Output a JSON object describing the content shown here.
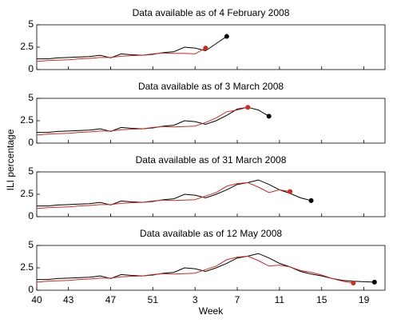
{
  "xlabel": "Week",
  "ylabel": "ILI percentage",
  "chart_data": [
    {
      "type": "line",
      "title": "Data available as of 4 February 2008",
      "x": [
        40,
        41,
        42,
        43,
        44,
        45,
        46,
        47,
        48,
        49,
        50,
        51,
        52,
        53,
        54,
        55,
        56,
        57,
        58
      ],
      "series": [
        {
          "color": "#000000",
          "values": [
            1.2,
            1.2,
            1.3,
            1.35,
            1.4,
            1.45,
            1.6,
            1.3,
            1.75,
            1.65,
            1.6,
            1.7,
            1.9,
            2.0,
            2.5,
            2.4,
            2.1,
            2.9,
            3.7
          ]
        },
        {
          "color": "#d7261e",
          "values": [
            0.9,
            1.0,
            1.05,
            1.1,
            1.2,
            1.25,
            1.35,
            1.35,
            1.5,
            1.55,
            1.6,
            1.75,
            1.85,
            1.8,
            1.8,
            1.75,
            2.4,
            null,
            null
          ]
        }
      ],
      "xlim": [
        40,
        73
      ],
      "xticks": [
        40,
        43,
        47,
        51,
        {
          "value": 55,
          "label": "3"
        },
        {
          "value": 59,
          "label": "7"
        },
        {
          "value": 63,
          "label": "11"
        },
        {
          "value": 67,
          "label": "15"
        },
        {
          "value": 71,
          "label": "19"
        }
      ],
      "ylim": [
        0,
        5
      ],
      "yticks": [
        0,
        2.5,
        5
      ]
    },
    {
      "type": "line",
      "title": "Data available as of 3 March 2008",
      "x": [
        40,
        41,
        42,
        43,
        44,
        45,
        46,
        47,
        48,
        49,
        50,
        51,
        52,
        53,
        54,
        55,
        56,
        57,
        58,
        59,
        60,
        61,
        62
      ],
      "series": [
        {
          "color": "#000000",
          "values": [
            1.2,
            1.2,
            1.3,
            1.35,
            1.4,
            1.45,
            1.6,
            1.3,
            1.75,
            1.65,
            1.6,
            1.7,
            1.9,
            2.0,
            2.5,
            2.4,
            2.1,
            2.5,
            3.1,
            3.8,
            4.0,
            3.7,
            3.0
          ]
        },
        {
          "color": "#d7261e",
          "values": [
            0.9,
            1.0,
            1.05,
            1.1,
            1.2,
            1.25,
            1.35,
            1.35,
            1.5,
            1.55,
            1.6,
            1.75,
            1.85,
            1.8,
            1.85,
            1.9,
            2.3,
            2.8,
            3.5,
            3.7,
            4.0,
            null,
            null
          ]
        }
      ],
      "xlim": [
        40,
        73
      ],
      "xticks": [
        40,
        43,
        47,
        51,
        {
          "value": 55,
          "label": "3"
        },
        {
          "value": 59,
          "label": "7"
        },
        {
          "value": 63,
          "label": "11"
        },
        {
          "value": 67,
          "label": "15"
        },
        {
          "value": 71,
          "label": "19"
        }
      ],
      "ylim": [
        0,
        5
      ],
      "yticks": [
        0,
        2.5,
        5
      ]
    },
    {
      "type": "line",
      "title": "Data available as of 31 March 2008",
      "x": [
        40,
        41,
        42,
        43,
        44,
        45,
        46,
        47,
        48,
        49,
        50,
        51,
        52,
        53,
        54,
        55,
        56,
        57,
        58,
        59,
        60,
        61,
        62,
        63,
        64,
        65,
        66
      ],
      "series": [
        {
          "color": "#000000",
          "values": [
            1.2,
            1.2,
            1.3,
            1.35,
            1.4,
            1.45,
            1.6,
            1.3,
            1.75,
            1.65,
            1.6,
            1.7,
            1.9,
            2.0,
            2.5,
            2.4,
            2.1,
            2.5,
            3.0,
            3.6,
            3.8,
            4.1,
            3.6,
            3.0,
            2.6,
            2.1,
            1.8
          ]
        },
        {
          "color": "#d7261e",
          "values": [
            0.9,
            1.0,
            1.05,
            1.1,
            1.2,
            1.25,
            1.35,
            1.35,
            1.5,
            1.55,
            1.6,
            1.75,
            1.85,
            1.8,
            1.85,
            1.9,
            2.3,
            2.7,
            3.4,
            3.7,
            3.8,
            3.3,
            2.7,
            3.0,
            2.8,
            null,
            null
          ]
        }
      ],
      "xlim": [
        40,
        73
      ],
      "xticks": [
        40,
        43,
        47,
        51,
        {
          "value": 55,
          "label": "3"
        },
        {
          "value": 59,
          "label": "7"
        },
        {
          "value": 63,
          "label": "11"
        },
        {
          "value": 67,
          "label": "15"
        },
        {
          "value": 71,
          "label": "19"
        }
      ],
      "ylim": [
        0,
        5
      ],
      "yticks": [
        0,
        2.5,
        5
      ]
    },
    {
      "type": "line",
      "title": "Data available as of 12 May 2008",
      "x": [
        40,
        41,
        42,
        43,
        44,
        45,
        46,
        47,
        48,
        49,
        50,
        51,
        52,
        53,
        54,
        55,
        56,
        57,
        58,
        59,
        60,
        61,
        62,
        63,
        64,
        65,
        66,
        67,
        68,
        69,
        70,
        71,
        72
      ],
      "series": [
        {
          "color": "#000000",
          "values": [
            1.2,
            1.2,
            1.3,
            1.35,
            1.4,
            1.45,
            1.6,
            1.3,
            1.75,
            1.65,
            1.6,
            1.7,
            1.9,
            2.0,
            2.5,
            2.4,
            2.1,
            2.5,
            3.0,
            3.6,
            3.8,
            4.1,
            3.6,
            3.0,
            2.6,
            2.1,
            1.8,
            1.6,
            1.3,
            1.1,
            1.0,
            0.95,
            0.9
          ]
        },
        {
          "color": "#d7261e",
          "values": [
            0.9,
            1.0,
            1.05,
            1.1,
            1.2,
            1.25,
            1.35,
            1.35,
            1.5,
            1.55,
            1.6,
            1.75,
            1.85,
            1.8,
            1.85,
            1.9,
            2.3,
            2.7,
            3.4,
            3.7,
            3.8,
            3.3,
            2.7,
            2.8,
            2.6,
            2.2,
            2.0,
            1.7,
            1.3,
            1.0,
            0.8,
            null,
            null
          ]
        }
      ],
      "xlim": [
        40,
        73
      ],
      "xticks": [
        40,
        43,
        47,
        51,
        {
          "value": 55,
          "label": "3"
        },
        {
          "value": 59,
          "label": "7"
        },
        {
          "value": 63,
          "label": "11"
        },
        {
          "value": 67,
          "label": "15"
        },
        {
          "value": 71,
          "label": "19"
        }
      ],
      "ylim": [
        0,
        5
      ],
      "yticks": [
        0,
        2.5,
        5
      ]
    }
  ]
}
